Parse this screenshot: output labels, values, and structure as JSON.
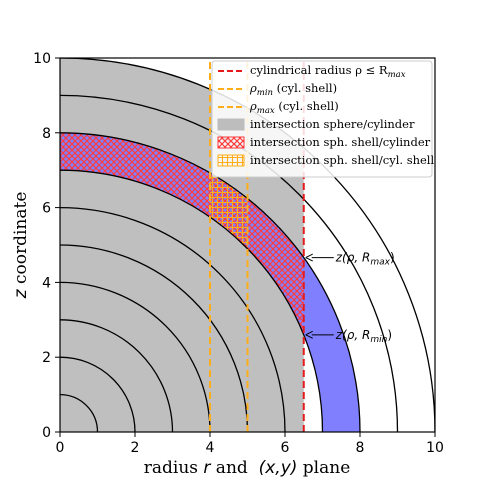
{
  "chart_data": {
    "type": "area",
    "xlabel_prefix": "radius ",
    "xlabel_r": "r",
    "xlabel_mid": " and  ",
    "xlabel_xy": "(x,y)",
    "xlabel_suffix": " plane",
    "ylabel_z": "z",
    "ylabel_suffix": " coordinate",
    "xlim": [
      0,
      10
    ],
    "ylim": [
      0,
      10
    ],
    "xticks": [
      "0",
      "2",
      "4",
      "6",
      "8",
      "10"
    ],
    "yticks": [
      "0",
      "2",
      "4",
      "6",
      "8",
      "10"
    ],
    "grid": false,
    "legend_position": "top-right",
    "sphere_radius": 10,
    "concentric_arc_radii": [
      1,
      2,
      3,
      4,
      5,
      6,
      7,
      8,
      9,
      10
    ],
    "shell_inner_radius": 7,
    "shell_outer_radius": 8,
    "cylinder_radius_rmax": 6.5,
    "rho_min": 4,
    "rho_max": 5,
    "legend": [
      {
        "label_main": "cylindrical radius ρ ≤ R",
        "label_sub": "max",
        "label_tail": "",
        "style": "dash",
        "color": "#e41a1c"
      },
      {
        "label_main": "ρ",
        "label_sub": "min",
        "label_tail": " (cyl. shell)",
        "style": "dash",
        "color": "#ffae1a"
      },
      {
        "label_main": "ρ",
        "label_sub": "max",
        "label_tail": " (cyl. shell)",
        "style": "dash",
        "color": "#ffae1a"
      },
      {
        "label_main": "intersection sphere/cylinder",
        "label_sub": "",
        "label_tail": "",
        "style": "patch-gray",
        "color": "#bdbdbd"
      },
      {
        "label_main": "intersection sph. shell/cylinder",
        "label_sub": "",
        "label_tail": "",
        "style": "patch-hatch-red",
        "color": "#ff3b3b"
      },
      {
        "label_main": "intersection sph. shell/cyl. shell",
        "label_sub": "",
        "label_tail": "",
        "style": "patch-hatch-orange",
        "color": "#ffae1a"
      }
    ],
    "annotations": [
      {
        "label_main": "z(ρ, R",
        "label_sub": "max",
        "label_tail": ")"
      },
      {
        "label_main": "z(ρ, R",
        "label_sub": "min",
        "label_tail": ")"
      }
    ],
    "colors": {
      "sphere_fill": "#bfbfbf",
      "shell_fill": "#8080ff",
      "cyl_line": "#e41a1c",
      "cyl_shell_line": "#ffae1a",
      "arc_line": "#000000"
    }
  }
}
